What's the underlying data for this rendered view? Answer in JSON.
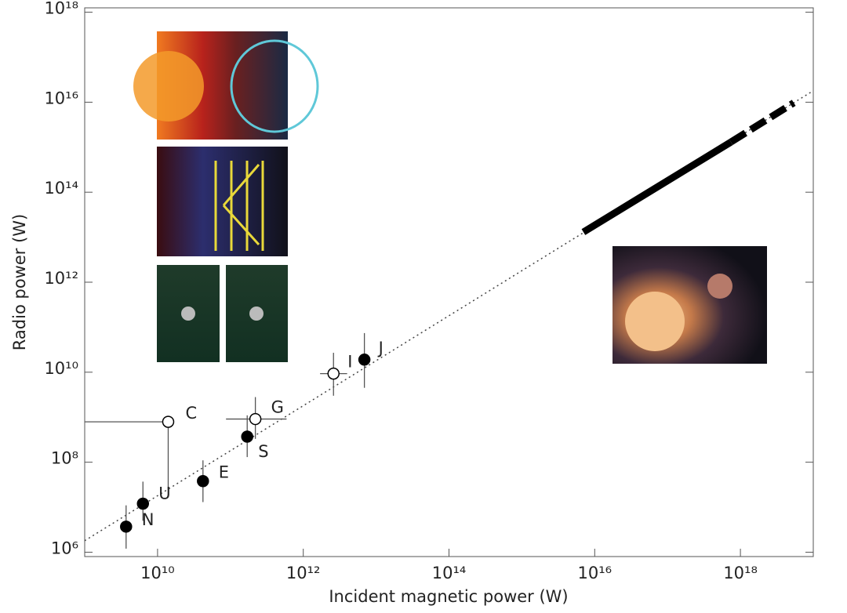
{
  "chart_data": {
    "type": "scatter",
    "x_label": "Incident magnetic power (W)",
    "y_label": "Radio power (W)",
    "log_x": true,
    "log_y": true,
    "xlim": [
      1000000000.0,
      1e+19
    ],
    "ylim": [
      800000.0,
      1.25e+18
    ],
    "xticks": [
      {
        "value": 10000000000.0,
        "label": "10¹⁰"
      },
      {
        "value": 1000000000000.0,
        "label": "10¹²"
      },
      {
        "value": 100000000000000.0,
        "label": "10¹⁴"
      },
      {
        "value": 1e+16,
        "label": "10¹⁶"
      },
      {
        "value": 1e+18,
        "label": "10¹⁸"
      }
    ],
    "yticks": [
      {
        "value": 1000000.0,
        "label": "10⁶"
      },
      {
        "value": 100000000.0,
        "label": "10⁸"
      },
      {
        "value": 10000000000.0,
        "label": "10¹⁰"
      },
      {
        "value": 1000000000000.0,
        "label": "10¹²"
      },
      {
        "value": 100000000000000.0,
        "label": "10¹⁴"
      },
      {
        "value": 1e+16,
        "label": "10¹⁶"
      },
      {
        "value": 1e+18,
        "label": "10¹⁸"
      }
    ],
    "color": "#000000",
    "points": [
      {
        "label": "N",
        "x": 3700000000.0,
        "y": 3700000.0,
        "y_low": 1200000.0,
        "y_high": 11000000.0,
        "filled": true
      },
      {
        "label": "U",
        "x": 6300000000.0,
        "y": 12000000.0,
        "y_low": 5000000.0,
        "y_high": 37000000.0,
        "filled": true
      },
      {
        "label": "E",
        "x": 42000000000.0,
        "y": 38000000.0,
        "y_low": 13000000.0,
        "y_high": 110000000.0,
        "filled": true
      },
      {
        "label": "S",
        "x": 170000000000.0,
        "y": 370000000.0,
        "y_low": 130000000.0,
        "y_high": 1100000000.0,
        "filled": true
      },
      {
        "label": "G",
        "x": 220000000000.0,
        "y": 910000000.0,
        "x_low": 87000000000.0,
        "x_high": 590000000000.0,
        "y_low": 330000000.0,
        "y_high": 2800000000.0,
        "filled": false
      },
      {
        "label": "C",
        "x": 14000000000.0,
        "y": 790000000.0,
        "x_low": 1000000000.0,
        "y_low": 25000000.0,
        "filled": false
      },
      {
        "label": "I",
        "x": 2600000000000.0,
        "y": 9300000000.0,
        "x_low": 1700000000000.0,
        "x_high": 4000000000000.0,
        "y_low": 3000000000.0,
        "y_high": 27000000000.0,
        "filled": false
      },
      {
        "label": "J",
        "x": 6900000000000.0,
        "y": 19000000000.0,
        "y_low": 4500000000.0,
        "y_high": 74000000000.0,
        "filled": true
      }
    ],
    "fit_line": {
      "x": [
        1000000000.0,
        1e+19
      ],
      "y": [
        1800000.0,
        1.8e+16
      ]
    },
    "prediction": {
      "x": [
        7000000000000000.0,
        7.4e+17,
        5.4e+18
      ],
      "y": [
        13000000000000.0,
        1300000000000000.0,
        9700000000000000.0
      ]
    }
  }
}
